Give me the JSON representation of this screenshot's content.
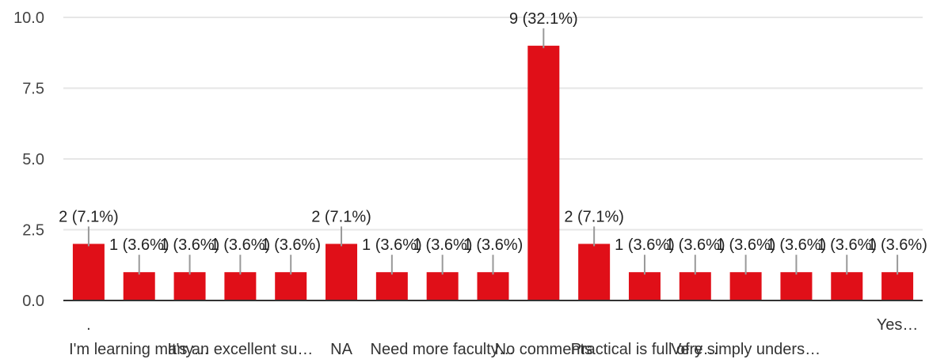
{
  "chart_data": {
    "type": "bar",
    "categories": [
      ".",
      "I'm learning many…",
      "",
      "It's an excellent su…",
      "",
      "NA",
      "",
      "Need more faculty…",
      "",
      "No comments",
      "",
      "Practical is full of e…",
      "",
      "Very simply unders…",
      "",
      "",
      "Yes…"
    ],
    "values": [
      2,
      1,
      1,
      1,
      1,
      2,
      1,
      1,
      1,
      9,
      2,
      1,
      1,
      1,
      1,
      1,
      1
    ],
    "labels": [
      "2 (7.1%)",
      "1 (3.6%)",
      "1 (3.6%)",
      "1 (3.6%)",
      "1 (3.6%)",
      "2 (7.1%)",
      "1 (3.6%)",
      "1 (3.6%)",
      "1 (3.6%)",
      "9 (32.1%)",
      "2 (7.1%)",
      "1 (3.6%)",
      "1 (3.6%)",
      "1 (3.6%)",
      "1 (3.6%)",
      "1 (3.6%)",
      "1 (3.6%)"
    ],
    "yticks": [
      "0.0",
      "2.5",
      "5.0",
      "7.5",
      "10.0"
    ],
    "ylim": [
      0,
      10
    ],
    "grid": true,
    "bar_color": "#e00f18"
  }
}
